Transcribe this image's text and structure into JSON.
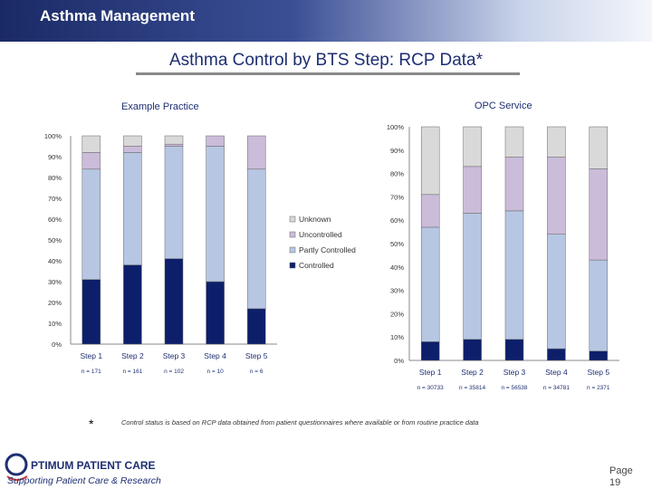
{
  "header": {
    "title": "Asthma Management"
  },
  "slide": {
    "title": "Asthma Control by BTS Step: RCP Data*"
  },
  "chart_data": [
    {
      "type": "bar",
      "stacked": true,
      "title": "Example Practice",
      "categories": [
        "Step 1",
        "Step 2",
        "Step 3",
        "Step 4",
        "Step 5"
      ],
      "n_labels": [
        "n = 171",
        "n = 161",
        "n = 102",
        "n = 10",
        "n = 6"
      ],
      "series": [
        {
          "name": "Controlled",
          "color": "#0d1f6b",
          "values": [
            31,
            38,
            41,
            30,
            17
          ]
        },
        {
          "name": "Partly Controlled",
          "color": "#b7c7e3",
          "values": [
            53,
            54,
            54,
            65,
            67
          ]
        },
        {
          "name": "Uncontrolled",
          "color": "#cbbcda",
          "values": [
            8,
            3,
            1,
            5,
            16
          ]
        },
        {
          "name": "Unknown",
          "color": "#d9d9d9",
          "values": [
            8,
            5,
            4,
            0,
            0
          ]
        }
      ],
      "ylim": [
        0,
        100
      ],
      "y_ticks": [
        "0%",
        "10%",
        "20%",
        "30%",
        "40%",
        "50%",
        "60%",
        "70%",
        "80%",
        "90%",
        "100%"
      ],
      "legend": "right",
      "legend_entries": [
        "Unknown",
        "Uncontrolled",
        "Partly Controlled",
        "Controlled"
      ]
    },
    {
      "type": "bar",
      "stacked": true,
      "title": "OPC Service",
      "categories": [
        "Step 1",
        "Step 2",
        "Step 3",
        "Step 4",
        "Step 5"
      ],
      "n_labels": [
        "n = 30733",
        "n = 35814",
        "n = 56538",
        "n = 34781",
        "n = 2371"
      ],
      "series": [
        {
          "name": "Controlled",
          "color": "#0d1f6b",
          "values": [
            8,
            9,
            9,
            5,
            4
          ]
        },
        {
          "name": "Partly Controlled",
          "color": "#b7c7e3",
          "values": [
            49,
            54,
            55,
            49,
            39
          ]
        },
        {
          "name": "Uncontrolled",
          "color": "#cbbcda",
          "values": [
            14,
            20,
            23,
            33,
            39
          ]
        },
        {
          "name": "Unknown",
          "color": "#d9d9d9",
          "values": [
            29,
            17,
            13,
            13,
            18
          ]
        }
      ],
      "ylim": [
        0,
        100
      ],
      "y_ticks": [
        "0%",
        "10%",
        "20%",
        "30%",
        "40%",
        "50%",
        "60%",
        "70%",
        "80%",
        "90%",
        "100%"
      ],
      "legend": "none"
    }
  ],
  "footnote": {
    "marker": "*",
    "text": "Control status is based on RCP data obtained from patient questionnaires where available or from routine practice data"
  },
  "logo": {
    "line1": "PTIMUM PATIENT CARE",
    "initial": "O",
    "line2": "Supporting Patient Care & Research"
  },
  "page": {
    "label": "Page",
    "number": "19"
  }
}
